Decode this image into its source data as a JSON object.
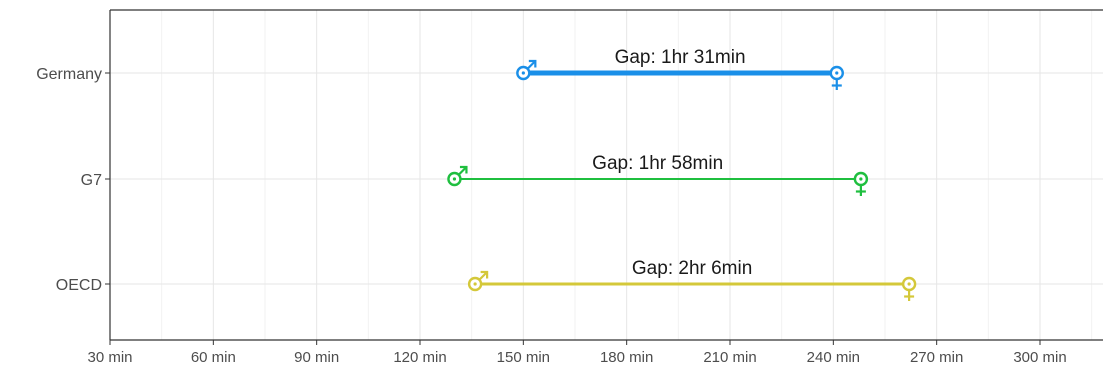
{
  "chart_data": {
    "type": "dumbbell",
    "title": "",
    "xlabel": "",
    "ylabel": "",
    "xlim": [
      30,
      330
    ],
    "x_ticks": [
      30,
      60,
      90,
      120,
      150,
      180,
      210,
      240,
      270,
      300
    ],
    "x_tick_labels": [
      "30 min",
      "60 min",
      "90 min",
      "120 min",
      "150 min",
      "180 min",
      "210 min",
      "240 min",
      "270 min",
      "300 min"
    ],
    "grid": true,
    "categories": [
      "Germany",
      "G7",
      "OECD"
    ],
    "rows": [
      {
        "category": "Germany",
        "male": 150,
        "female": 241,
        "gap_label": "Gap: 1hr 31min",
        "color": "#1a8fe8"
      },
      {
        "category": "G7",
        "male": 130,
        "female": 248,
        "gap_label": "Gap: 1hr 58min",
        "color": "#1fbf3f"
      },
      {
        "category": "OECD",
        "male": 136,
        "female": 262,
        "gap_label": "Gap: 2hr 6min",
        "color": "#d4c83a"
      }
    ],
    "markers": {
      "male_symbol": "♂",
      "female_symbol": "♀"
    }
  }
}
